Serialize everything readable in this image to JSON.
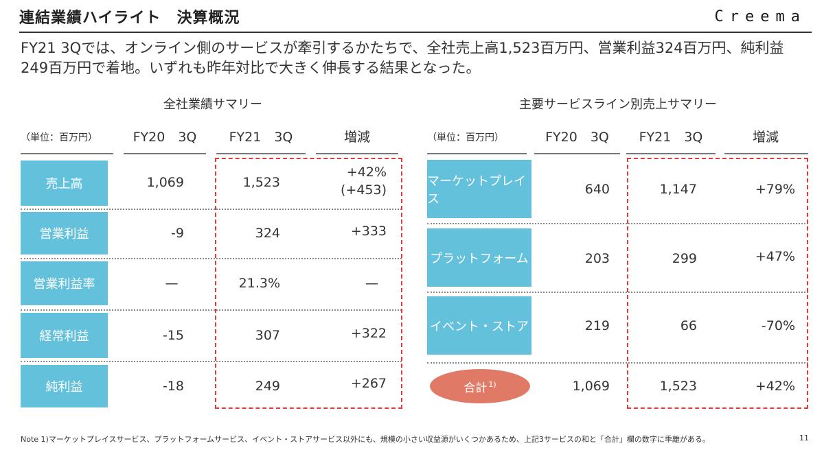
{
  "header": {
    "title": "連結業績ハイライト　決算概況",
    "logo": "Creema"
  },
  "lead": "FY21 3Qでは、オンライン側のサービスが牽引するかたちで、全社売上高1,523百万円、営業利益324百万円、純利益249百万円で着地。いずれも昨年対比で大きく伸長する結果となった。",
  "left_table": {
    "title": "全社業績サマリー",
    "unit": "（単位：百万円）",
    "col_fy20": "FY20　3Q",
    "col_fy21": "FY21　3Q",
    "col_diff": "増減",
    "rows": [
      {
        "label": "売上高",
        "fy20": "1,069",
        "fy21": "1,523",
        "diff": "+42%",
        "diff2": "(+453)"
      },
      {
        "label": "営業利益",
        "fy20": "-9",
        "fy21": "324",
        "diff": "+333",
        "diff2": ""
      },
      {
        "label": "営業利益率",
        "fy20": "—",
        "fy21": "21.3%",
        "diff": "—",
        "diff2": ""
      },
      {
        "label": "経常利益",
        "fy20": "-15",
        "fy21": "307",
        "diff": "+322",
        "diff2": ""
      },
      {
        "label": "純利益",
        "fy20": "-18",
        "fy21": "249",
        "diff": "+267",
        "diff2": ""
      }
    ]
  },
  "right_table": {
    "title": "主要サービスライン別売上サマリー",
    "unit": "（単位：百万円）",
    "col_fy20": "FY20　3Q",
    "col_fy21": "FY21　3Q",
    "col_diff": "増減",
    "rows": [
      {
        "label": "マーケットプレイス",
        "fy20": "640",
        "fy21": "1,147",
        "diff": "+79%"
      },
      {
        "label": "プラットフォーム",
        "fy20": "203",
        "fy21": "299",
        "diff": "+47%"
      },
      {
        "label": "イベント・ストア",
        "fy20": "219",
        "fy21": "66",
        "diff": "-70%"
      }
    ],
    "total": {
      "label": "合計",
      "note_mark": "1)",
      "fy20": "1,069",
      "fy21": "1,523",
      "diff": "+42%"
    }
  },
  "footer": {
    "note": "Note 1)マーケットプレイスサービス、プラットフォームサービス、イベント・ストアサービス以外にも、規模の小さい収益源がいくつかあるため、上記3サービスの和と「合計」欄の数字に乖離がある。",
    "page": "11"
  },
  "colors": {
    "label_bg": "#63c1dc",
    "highlight_border": "#e03a3a",
    "total_oval": "#e07a66"
  }
}
